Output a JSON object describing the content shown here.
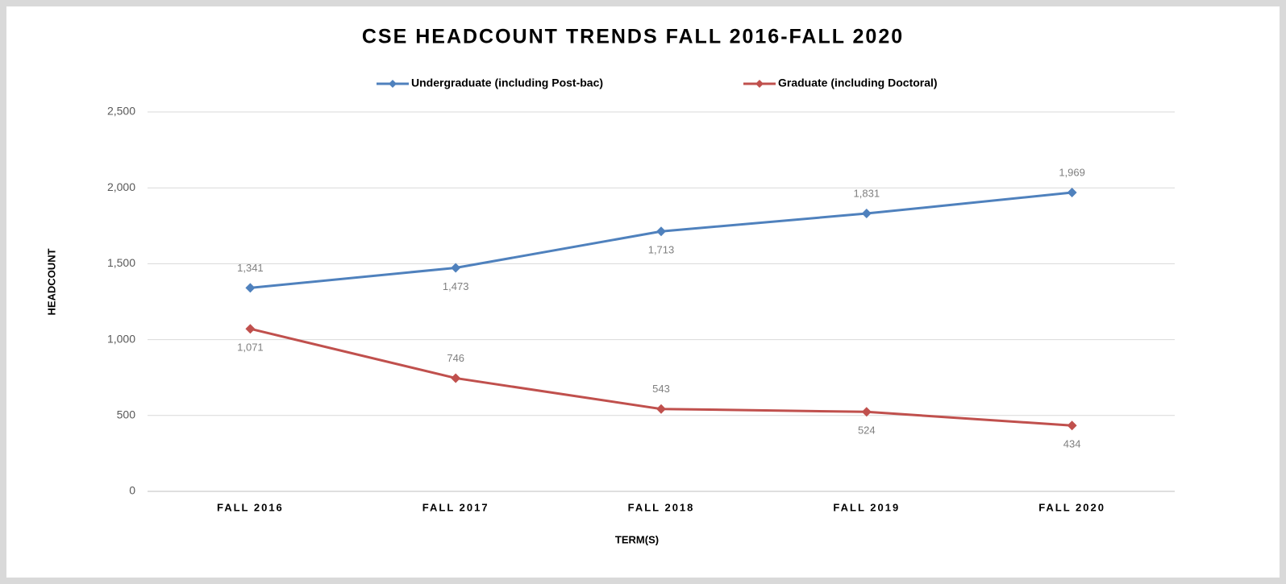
{
  "chart_data": {
    "type": "line",
    "title": "CSE HEADCOUNT TRENDS FALL 2016-FALL 2020",
    "x_label": "TERM(S)",
    "y_label": "HEADCOUNT",
    "categories": [
      "FALL 2016",
      "FALL 2017",
      "FALL 2018",
      "FALL 2019",
      "FALL 2020"
    ],
    "series": [
      {
        "name": "Undergraduate (including Post-bac)",
        "color": "#4f81bd",
        "values": [
          1341,
          1473,
          1713,
          1831,
          1969
        ],
        "value_labels": [
          "1,341",
          "1,473",
          "1,713",
          "1,831",
          "1,969"
        ]
      },
      {
        "name": "Graduate (including Doctoral)",
        "color": "#c0504d",
        "values": [
          1071,
          746,
          543,
          524,
          434
        ],
        "value_labels": [
          "1,071",
          "746",
          "543",
          "524",
          "434"
        ]
      }
    ],
    "ylim": [
      0,
      2500
    ],
    "yticks": [
      0,
      500,
      {
        "value": 1000,
        "label": "1,000"
      },
      {
        "value": 1500,
        "label": "1,500"
      },
      {
        "value": 2000,
        "label": "2,000"
      },
      {
        "value": 2500,
        "label": "2,500"
      }
    ],
    "grid": true,
    "legend": "top"
  }
}
